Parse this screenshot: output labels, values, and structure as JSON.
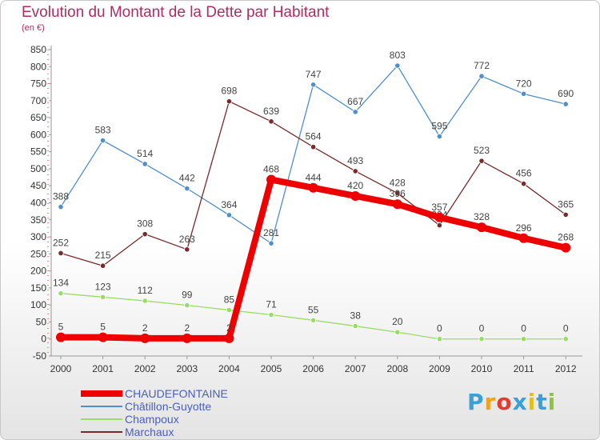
{
  "title": "Evolution du Montant de la Dette par Habitant",
  "subtitle": "(en €)",
  "logo": {
    "text": "Proxiti",
    "letters": [
      "P",
      "r",
      "o",
      "x",
      "i",
      "t",
      "i"
    ],
    "letter_colors": [
      "#3aa0d9",
      "#f0a21a",
      "#e03c31",
      "#3aa0d9",
      "#e0c020",
      "#3aa0d9",
      "#8cc63f"
    ]
  },
  "chart_data": {
    "type": "line",
    "x": [
      "2000",
      "2001",
      "2002",
      "2003",
      "2004",
      "2005",
      "2006",
      "2007",
      "2008",
      "2009",
      "2010",
      "2011",
      "2012"
    ],
    "ylim": [
      -50,
      850
    ],
    "yticks": [
      -50,
      0,
      50,
      100,
      150,
      200,
      250,
      300,
      350,
      400,
      450,
      500,
      550,
      600,
      650,
      700,
      750,
      800,
      850
    ],
    "grid": false,
    "legend_position": "bottom-left",
    "series": [
      {
        "name": "Châtillon-Guyotte",
        "color": "#4e8fcc",
        "values": [
          388,
          583,
          514,
          442,
          364,
          281,
          747,
          667,
          803,
          595,
          772,
          720,
          690
        ]
      },
      {
        "name": "Champoux",
        "color": "#99dd66",
        "values": [
          134,
          123,
          112,
          99,
          85,
          71,
          55,
          38,
          20,
          0,
          0,
          0,
          0
        ]
      },
      {
        "name": "Marchaux",
        "color": "#7a2a2a",
        "values": [
          252,
          215,
          308,
          263,
          698,
          639,
          564,
          493,
          428,
          334,
          523,
          456,
          365
        ]
      },
      {
        "name": "CHAUDEFONTAINE",
        "color": "#ee0000",
        "values": [
          5,
          5,
          2,
          2,
          2,
          468,
          444,
          420,
          396,
          357,
          328,
          296,
          268
        ]
      }
    ]
  }
}
